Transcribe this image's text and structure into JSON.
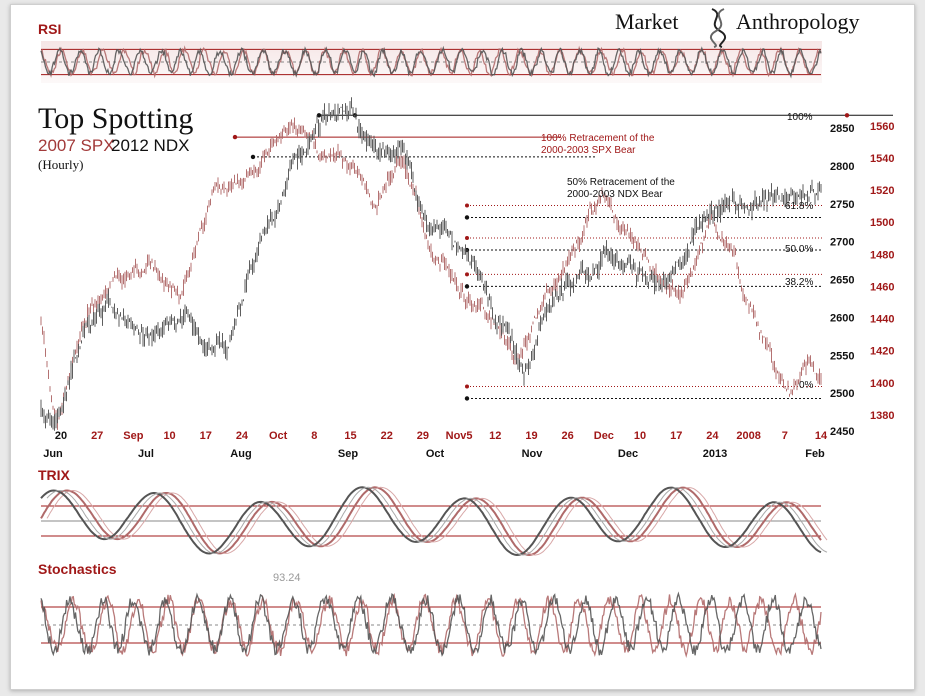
{
  "brand": {
    "part1": "Market",
    "part2": "Anthropology"
  },
  "header": {
    "title": "Top Spotting",
    "sub_red": "2007 SPX",
    "sub_black": "2012 NDX",
    "interval": "(Hourly)"
  },
  "panels": {
    "rsi": "RSI",
    "trix": "TRIX",
    "stoch": "Stochastics",
    "stoch_value": "93.24"
  },
  "colors": {
    "spx": "#b06a6a",
    "ndx": "#555555",
    "ref_red": "#a01818",
    "ref_black": "#111111"
  },
  "annotations": {
    "spx_retr_1": "100% Retracement of the",
    "spx_retr_2": "2000-2003 SPX Bear",
    "ndx_retr_1": "50% Retracement of the",
    "ndx_retr_2": "2000-2003 NDX Bear",
    "fib_100": "100%",
    "fib_618": "61.8%",
    "fib_500": "50.0%",
    "fib_382": "38.2%",
    "fib_0": "0%"
  },
  "chart_data": {
    "type": "line",
    "x_day_labels": [
      {
        "t": "20",
        "c": "k"
      },
      {
        "t": "27",
        "c": "r"
      },
      {
        "t": "Sep",
        "c": "r"
      },
      {
        "t": "10",
        "c": "r"
      },
      {
        "t": "17",
        "c": "r"
      },
      {
        "t": "24",
        "c": "r"
      },
      {
        "t": "Oct",
        "c": "r"
      },
      {
        "t": "8",
        "c": "r"
      },
      {
        "t": "15",
        "c": "r"
      },
      {
        "t": "22",
        "c": "r"
      },
      {
        "t": "29",
        "c": "r"
      },
      {
        "t": "Nov5",
        "c": "r"
      },
      {
        "t": "12",
        "c": "r"
      },
      {
        "t": "19",
        "c": "r"
      },
      {
        "t": "26",
        "c": "r"
      },
      {
        "t": "Dec",
        "c": "r"
      },
      {
        "t": "10",
        "c": "r"
      },
      {
        "t": "17",
        "c": "r"
      },
      {
        "t": "24",
        "c": "r"
      },
      {
        "t": "2008",
        "c": "r"
      },
      {
        "t": "7",
        "c": "r"
      },
      {
        "t": "14",
        "c": "r"
      }
    ],
    "x_month_labels": [
      "Jun",
      "Jul",
      "Aug",
      "Sep",
      "Oct",
      "Nov",
      "Dec",
      "2013",
      "Feb"
    ],
    "ndx_axis": {
      "ticks": [
        2450,
        2500,
        2550,
        2600,
        2650,
        2700,
        2750,
        2800,
        2850
      ],
      "range": [
        2450,
        2870
      ]
    },
    "spx_axis": {
      "ticks": [
        1380,
        1400,
        1420,
        1440,
        1460,
        1480,
        1500,
        1520,
        1540,
        1560
      ],
      "range": [
        1370,
        1568
      ]
    },
    "series": [
      {
        "name": "2007 SPX",
        "axis": "spx",
        "anchors": [
          [
            0,
            1440
          ],
          [
            0.02,
            1375
          ],
          [
            0.06,
            1445
          ],
          [
            0.1,
            1465
          ],
          [
            0.14,
            1475
          ],
          [
            0.18,
            1455
          ],
          [
            0.22,
            1520
          ],
          [
            0.26,
            1530
          ],
          [
            0.3,
            1550
          ],
          [
            0.34,
            1558
          ],
          [
            0.36,
            1545
          ],
          [
            0.4,
            1535
          ],
          [
            0.43,
            1505
          ],
          [
            0.46,
            1545
          ],
          [
            0.48,
            1520
          ],
          [
            0.5,
            1485
          ],
          [
            0.54,
            1460
          ],
          [
            0.58,
            1435
          ],
          [
            0.61,
            1410
          ],
          [
            0.64,
            1450
          ],
          [
            0.68,
            1475
          ],
          [
            0.72,
            1520
          ],
          [
            0.74,
            1500
          ],
          [
            0.78,
            1470
          ],
          [
            0.82,
            1450
          ],
          [
            0.86,
            1500
          ],
          [
            0.89,
            1475
          ],
          [
            0.91,
            1445
          ],
          [
            0.94,
            1415
          ],
          [
            0.96,
            1395
          ],
          [
            0.98,
            1410
          ],
          [
            1.0,
            1405
          ]
        ]
      },
      {
        "name": "2012 NDX",
        "axis": "ndx",
        "anchors": [
          [
            0,
            2480
          ],
          [
            0.02,
            2458
          ],
          [
            0.05,
            2565
          ],
          [
            0.09,
            2605
          ],
          [
            0.13,
            2570
          ],
          [
            0.17,
            2610
          ],
          [
            0.2,
            2580
          ],
          [
            0.24,
            2560
          ],
          [
            0.28,
            2700
          ],
          [
            0.32,
            2790
          ],
          [
            0.36,
            2860
          ],
          [
            0.4,
            2870
          ],
          [
            0.43,
            2810
          ],
          [
            0.46,
            2820
          ],
          [
            0.5,
            2725
          ],
          [
            0.54,
            2700
          ],
          [
            0.58,
            2600
          ],
          [
            0.62,
            2545
          ],
          [
            0.64,
            2600
          ],
          [
            0.68,
            2645
          ],
          [
            0.72,
            2680
          ],
          [
            0.76,
            2650
          ],
          [
            0.8,
            2640
          ],
          [
            0.84,
            2720
          ],
          [
            0.88,
            2745
          ],
          [
            0.92,
            2755
          ],
          [
            0.96,
            2765
          ],
          [
            1.0,
            2770
          ]
        ]
      }
    ],
    "reference_levels": [
      {
        "label": "100%",
        "axis": "ndx",
        "value": 2867
      },
      {
        "label": "100% SPX Bear",
        "axis": "spx",
        "value": 1553
      },
      {
        "label": "50% NDX Bear",
        "axis": "ndx",
        "value": 2812
      },
      {
        "label": "61.8%",
        "axis": "ndx",
        "value": 2732
      },
      {
        "label": "50.0%",
        "axis": "ndx",
        "value": 2689
      },
      {
        "label": "38.2%",
        "axis": "ndx",
        "value": 2641
      },
      {
        "label": "0%",
        "axis": "ndx",
        "value": 2493
      }
    ],
    "rsi_levels": [
      70,
      50,
      30
    ],
    "stoch_levels": [
      80,
      50,
      20
    ]
  }
}
